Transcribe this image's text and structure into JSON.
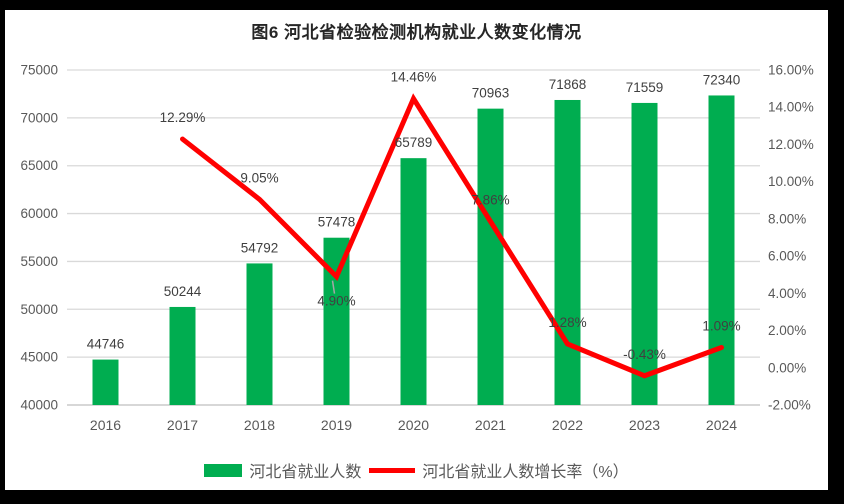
{
  "chart_data": {
    "type": "combo (bar + line, dual axis)",
    "title": "图6 河北省检验检测机构就业人数变化情况",
    "categories": [
      "2016",
      "2017",
      "2018",
      "2019",
      "2020",
      "2021",
      "2022",
      "2023",
      "2024"
    ],
    "series": [
      {
        "name": "河北省就业人数",
        "chart_type": "bar",
        "axis": "left",
        "values": [
          44746,
          50244,
          54792,
          57478,
          65789,
          70963,
          71868,
          71559,
          72340
        ],
        "data_labels": [
          "44746",
          "50244",
          "54792",
          "57478",
          "65789",
          "70963",
          "71868",
          "71559",
          "72340"
        ]
      },
      {
        "name": "河北省就业人数增长率（%）",
        "chart_type": "line",
        "axis": "right",
        "values": [
          null,
          12.29,
          9.05,
          4.9,
          14.46,
          7.86,
          1.28,
          -0.43,
          1.09
        ],
        "data_labels": [
          "",
          "12.29%",
          "9.05%",
          "4.90%",
          "14.46%",
          "7.86%",
          "1.28%",
          "-0.43%",
          "1.09%"
        ],
        "label_positions": [
          "",
          "above",
          "above",
          "below-leader",
          "above",
          "above",
          "above",
          "above",
          "above"
        ]
      }
    ],
    "left_axis": {
      "min": 40000,
      "max": 75000,
      "step": 5000,
      "tick_values": [
        75000,
        70000,
        65000,
        60000,
        55000,
        50000,
        45000,
        40000
      ],
      "tick_labels": [
        "75000",
        "70000",
        "65000",
        "60000",
        "55000",
        "50000",
        "45000",
        "40000"
      ]
    },
    "right_axis": {
      "min": -2,
      "max": 16,
      "step": 2,
      "tick_values": [
        16,
        14,
        12,
        10,
        8,
        6,
        4,
        2,
        0,
        -2
      ],
      "tick_labels": [
        "16.00%",
        "14.00%",
        "12.00%",
        "10.00%",
        "8.00%",
        "6.00%",
        "4.00%",
        "2.00%",
        "0.00%",
        "-2.00%"
      ]
    },
    "legend": [
      "河北省就业人数",
      "河北省就业人数增长率（%）"
    ],
    "legend_position": "bottom",
    "grid": "horizontal",
    "colors": {
      "bar": "#00AD50",
      "line": "#FF0000",
      "gridline": "#D9D9D9",
      "axis_line": "#BFBFBF",
      "tick_text": "#595959",
      "label_text": "#404040",
      "leader_line": "#A6A6A6"
    }
  }
}
